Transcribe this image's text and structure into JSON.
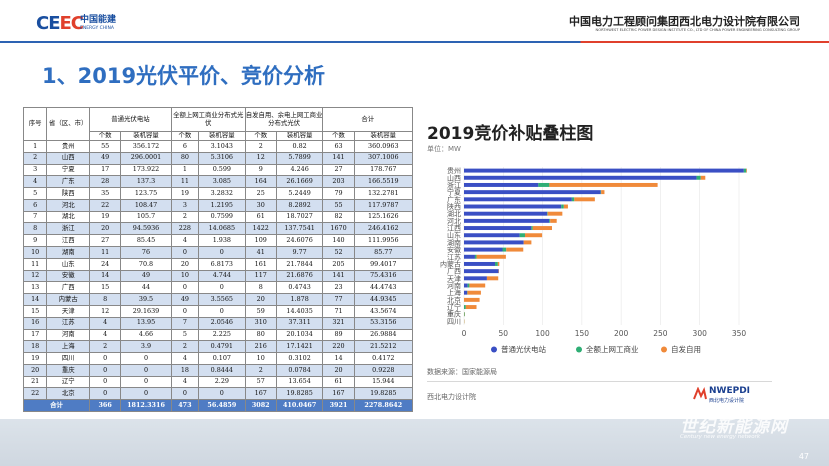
{
  "header": {
    "logo_mark_left": "CE",
    "logo_mark_right": "EC",
    "logo_cn": "中国能建",
    "logo_en": "ENERGY CHINA",
    "org_cn": "中国电力工程顾问集团西北电力设计院有限公司",
    "org_en": "NORTHWEST ELECTRIC POWER DESIGN INSTITUTE CO., LTD OF CHINA POWER ENGINEERING CONSULTING GROUP"
  },
  "title": "1、2019光伏平价、竞价分析",
  "table": {
    "headers": {
      "seq": "序号",
      "province": "省（区、市）",
      "g1": "普通光伏电站",
      "g2": "全额上网工商业分布式光伏",
      "g3": "自发自用、余电上网工商业分布式光伏",
      "g4": "合计",
      "count": "个数",
      "capacity": "装机容量"
    },
    "rows": [
      [
        "1",
        "贵州",
        "55",
        "356.172",
        "6",
        "3.1043",
        "2",
        "0.82",
        "63",
        "360.0963"
      ],
      [
        "2",
        "山西",
        "49",
        "296.0001",
        "80",
        "5.3106",
        "12",
        "5.7899",
        "141",
        "307.1006"
      ],
      [
        "3",
        "宁夏",
        "17",
        "173.922",
        "1",
        "0.599",
        "9",
        "4.246",
        "27",
        "178.767"
      ],
      [
        "4",
        "广东",
        "28",
        "137.3",
        "11",
        "3.085",
        "164",
        "26.1669",
        "203",
        "166.5519"
      ],
      [
        "5",
        "陕西",
        "35",
        "123.75",
        "19",
        "3.2832",
        "25",
        "5.2449",
        "79",
        "132.2781"
      ],
      [
        "6",
        "河北",
        "22",
        "108.47",
        "3",
        "1.2195",
        "30",
        "8.2892",
        "55",
        "117.9787"
      ],
      [
        "7",
        "湖北",
        "19",
        "105.7",
        "2",
        "0.7599",
        "61",
        "18.7027",
        "82",
        "125.1626"
      ],
      [
        "8",
        "浙江",
        "20",
        "94.5936",
        "228",
        "14.0685",
        "1422",
        "137.7541",
        "1670",
        "246.4162"
      ],
      [
        "9",
        "江西",
        "27",
        "85.45",
        "4",
        "1.938",
        "109",
        "24.6076",
        "140",
        "111.9956"
      ],
      [
        "10",
        "湖南",
        "11",
        "76",
        "0",
        "0",
        "41",
        "9.77",
        "52",
        "85.77"
      ],
      [
        "11",
        "山东",
        "24",
        "70.8",
        "20",
        "6.8173",
        "161",
        "21.7844",
        "205",
        "99.4017"
      ],
      [
        "12",
        "安徽",
        "14",
        "49",
        "10",
        "4.744",
        "117",
        "21.6876",
        "141",
        "75.4316"
      ],
      [
        "13",
        "广西",
        "15",
        "44",
        "0",
        "0",
        "8",
        "0.4743",
        "23",
        "44.4743"
      ],
      [
        "14",
        "内蒙古",
        "8",
        "39.5",
        "49",
        "3.5565",
        "20",
        "1.878",
        "77",
        "44.9345"
      ],
      [
        "15",
        "天津",
        "12",
        "29.1639",
        "0",
        "0",
        "59",
        "14.4035",
        "71",
        "43.5674"
      ],
      [
        "16",
        "江苏",
        "4",
        "13.95",
        "7",
        "2.0546",
        "310",
        "37.311",
        "321",
        "53.3156"
      ],
      [
        "17",
        "河南",
        "4",
        "4.66",
        "5",
        "2.225",
        "80",
        "20.1034",
        "89",
        "26.9884"
      ],
      [
        "18",
        "上海",
        "2",
        "3.9",
        "2",
        "0.4791",
        "216",
        "17.1421",
        "220",
        "21.5212"
      ],
      [
        "19",
        "四川",
        "0",
        "0",
        "4",
        "0.107",
        "10",
        "0.3102",
        "14",
        "0.4172"
      ],
      [
        "20",
        "重庆",
        "0",
        "0",
        "18",
        "0.8444",
        "2",
        "0.0784",
        "20",
        "0.9228"
      ],
      [
        "21",
        "辽宁",
        "0",
        "0",
        "4",
        "2.29",
        "57",
        "13.654",
        "61",
        "15.944"
      ],
      [
        "22",
        "北京",
        "0",
        "0",
        "0",
        "0",
        "167",
        "19.8285",
        "167",
        "19.8285"
      ]
    ],
    "total": [
      "合计",
      "366",
      "1812.3316",
      "473",
      "56.4859",
      "3082",
      "410.0467",
      "3921",
      "2278.8642"
    ]
  },
  "chart_data": {
    "type": "bar",
    "orientation": "horizontal",
    "stacked": true,
    "title": "2019竞价补贴叠柱图",
    "unit": "单位：MW",
    "categories": [
      "贵州",
      "山西",
      "浙江",
      "宁夏",
      "广东",
      "陕西",
      "湖北",
      "河北",
      "江西",
      "山东",
      "湖南",
      "安徽",
      "江苏",
      "内蒙古",
      "广西",
      "天津",
      "河南",
      "上海",
      "北京",
      "辽宁",
      "重庆",
      "四川"
    ],
    "series": [
      {
        "name": "普通光伏电站",
        "color": "#3a4fc4",
        "values": [
          356.172,
          296.0001,
          94.5936,
          173.922,
          137.3,
          123.75,
          105.7,
          108.47,
          85.45,
          70.8,
          76,
          49,
          13.95,
          39.5,
          44,
          29.1639,
          4.66,
          3.9,
          0,
          0,
          0,
          0
        ]
      },
      {
        "name": "全额上网工商业",
        "color": "#2fae75",
        "values": [
          3.1043,
          5.3106,
          14.0685,
          0.599,
          3.085,
          3.2832,
          0.7599,
          1.2195,
          1.938,
          6.8173,
          0,
          4.744,
          2.0546,
          3.5565,
          0,
          0,
          2.225,
          0.4791,
          0,
          2.29,
          0.8444,
          0.107
        ]
      },
      {
        "name": "自发自用",
        "color": "#f08a3a",
        "values": [
          0.82,
          5.7899,
          137.7541,
          4.246,
          26.1669,
          5.2449,
          18.7027,
          8.2892,
          24.6076,
          21.7844,
          9.77,
          21.6876,
          37.311,
          1.878,
          0.4743,
          14.4035,
          20.1034,
          17.1421,
          19.8285,
          13.654,
          0.0784,
          0.3102
        ]
      }
    ],
    "xlim": [
      0,
      350
    ],
    "xticks": [
      0,
      50,
      100,
      150,
      200,
      250,
      300,
      350
    ],
    "legend_position": "bottom"
  },
  "footer": {
    "source": "数据来源：国家能源局",
    "org": "西北电力设计院",
    "brand_en": "NWEPDI",
    "brand_cn": "西北电力设计院"
  },
  "watermark": {
    "cn": "世纪新能源网",
    "en": "Century new energy network"
  },
  "page_number": "47"
}
